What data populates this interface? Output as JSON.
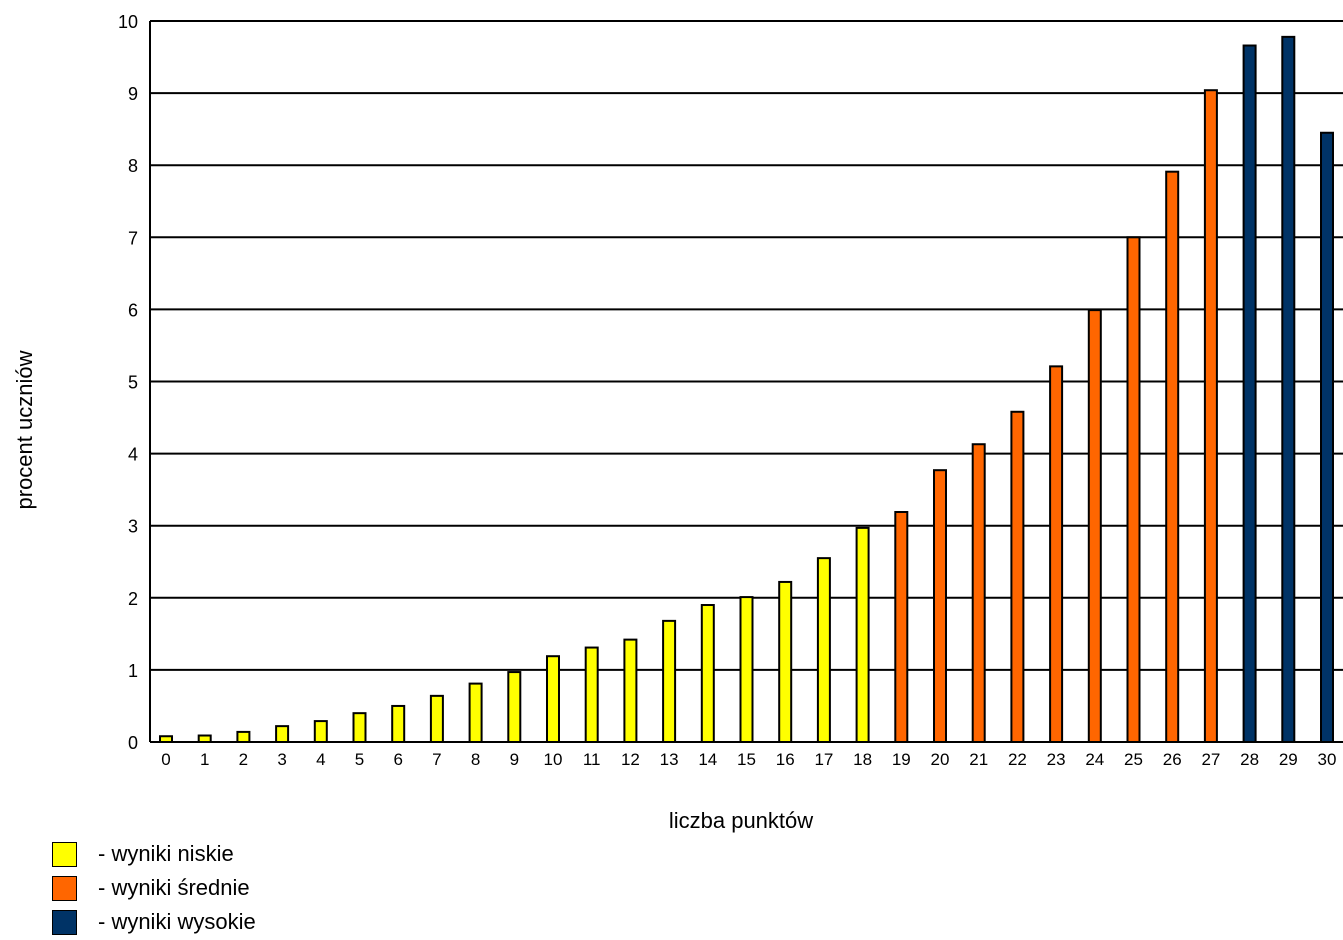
{
  "chart_data": {
    "type": "bar",
    "title": "",
    "xlabel": "liczba punktów",
    "ylabel": "procent uczniów",
    "ylim": [
      0,
      10
    ],
    "yticks": [
      "0",
      "1",
      "2",
      "3",
      "4",
      "5",
      "6",
      "7",
      "8",
      "9",
      "10"
    ],
    "grid": true,
    "legend_placement": "bottom-left",
    "categories": [
      "0",
      "1",
      "2",
      "3",
      "4",
      "5",
      "6",
      "7",
      "8",
      "9",
      "10",
      "11",
      "12",
      "13",
      "14",
      "15",
      "16",
      "17",
      "18",
      "19",
      "20",
      "21",
      "22",
      "23",
      "24",
      "25",
      "26",
      "27",
      "28",
      "29",
      "30"
    ],
    "values": [
      0.08,
      0.09,
      0.14,
      0.22,
      0.29,
      0.4,
      0.5,
      0.64,
      0.81,
      0.97,
      1.19,
      1.31,
      1.42,
      1.68,
      1.9,
      2.01,
      2.22,
      2.55,
      2.97,
      3.19,
      3.77,
      4.13,
      4.58,
      5.21,
      5.99,
      7.0,
      7.91,
      9.04,
      9.66,
      9.78,
      8.45
    ],
    "groups": [
      "low",
      "low",
      "low",
      "low",
      "low",
      "low",
      "low",
      "low",
      "low",
      "low",
      "low",
      "low",
      "low",
      "low",
      "low",
      "low",
      "low",
      "low",
      "low",
      "mid",
      "mid",
      "mid",
      "mid",
      "mid",
      "mid",
      "mid",
      "mid",
      "mid",
      "high",
      "high",
      "high"
    ],
    "legend": [
      {
        "key": "low",
        "label": "- wyniki niskie",
        "color": "#ffff00"
      },
      {
        "key": "mid",
        "label": "- wyniki średnie",
        "color": "#ff6600"
      },
      {
        "key": "high",
        "label": "- wyniki wysokie",
        "color": "#003366"
      }
    ]
  }
}
